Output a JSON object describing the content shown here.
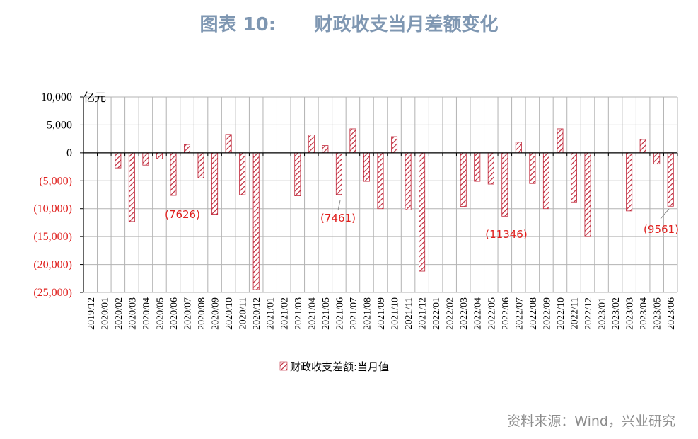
{
  "title": "图表 10:      财政收支当月差额变化",
  "source": "资料来源：Wind，兴业研究",
  "chart_data": {
    "type": "bar",
    "unit_label": "亿元",
    "series_name": "财政收支差额:当月值",
    "ylim": [
      -25000,
      10000
    ],
    "yticks": [
      10000,
      5000,
      0,
      -5000,
      -10000,
      -15000,
      -20000,
      -25000
    ],
    "ytick_labels": [
      "10,000",
      "5,000",
      "0",
      "(5,000)",
      "(10,000)",
      "(15,000)",
      "(20,000)",
      "(25,000)"
    ],
    "grid": true,
    "legend_position": "bottom",
    "categories": [
      "2019/12",
      "2020/01",
      "2020/02",
      "2020/03",
      "2020/04",
      "2020/05",
      "2020/06",
      "2020/07",
      "2020/08",
      "2020/09",
      "2020/10",
      "2020/11",
      "2020/12",
      "2021/01",
      "2021/02",
      "2021/03",
      "2021/04",
      "2021/05",
      "2021/06",
      "2021/07",
      "2021/08",
      "2021/09",
      "2021/10",
      "2021/11",
      "2021/12",
      "2022/01",
      "2022/02",
      "2022/03",
      "2022/04",
      "2022/05",
      "2022/06",
      "2022/07",
      "2022/08",
      "2022/09",
      "2022/10",
      "2022/11",
      "2022/12",
      "2023/01",
      "2023/02",
      "2023/03",
      "2023/04",
      "2023/05",
      "2023/06"
    ],
    "values": [
      null,
      null,
      -2700,
      -12300,
      -2200,
      -1100,
      -7626,
      1500,
      -4500,
      -11000,
      3300,
      -7500,
      -24500,
      null,
      null,
      -7700,
      3200,
      1300,
      -7461,
      4300,
      -5100,
      -10000,
      2900,
      -10200,
      -21200,
      null,
      null,
      -9600,
      -5100,
      -5600,
      -11346,
      1900,
      -5500,
      -10000,
      4300,
      -8800,
      -15000,
      null,
      null,
      -10400,
      2400,
      -2000,
      -9561
    ],
    "annotations": [
      {
        "text": "(7626)",
        "category": "2020/06"
      },
      {
        "text": "(7461)",
        "category": "2021/06"
      },
      {
        "text": "(11346)",
        "category": "2022/06"
      },
      {
        "text": "(9561)",
        "category": "2023/06"
      }
    ],
    "colors": {
      "bar": "#c0283a",
      "negative_label": "#e0201e",
      "grid": "#b3b3b3",
      "title": "#7f97b2"
    }
  }
}
